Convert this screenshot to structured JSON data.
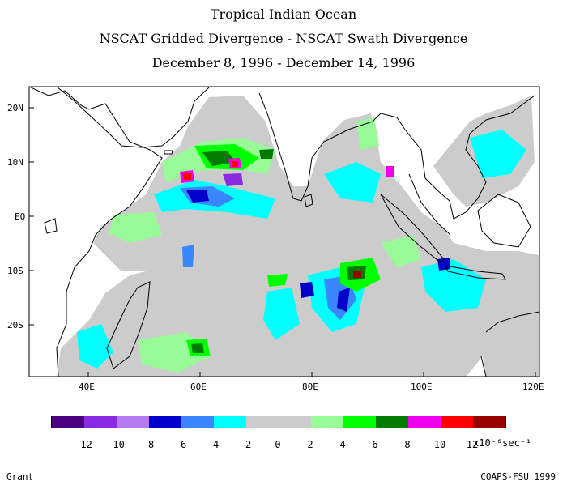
{
  "titles": {
    "line1": "Tropical Indian Ocean",
    "line2": "NSCAT Gridded Divergence - NSCAT Swath Divergence",
    "line3": "December 8, 1996 - December 14, 1996"
  },
  "axes": {
    "lat_labels": [
      "20N",
      "10N",
      "EQ",
      "10S",
      "20S"
    ],
    "lon_labels": [
      "40E",
      "60E",
      "80E",
      "100E",
      "120E"
    ]
  },
  "colorbar": {
    "colors": [
      "#4b0082",
      "#8a2be2",
      "#b77bf0",
      "#0000cd",
      "#3a86ff",
      "#00ffff",
      "#cccccc",
      "#cccccc",
      "#98fb98",
      "#00ff00",
      "#007a00",
      "#ee00ee",
      "#ff0000",
      "#990000"
    ],
    "labels": [
      "-12",
      "-10",
      "-8",
      "-6",
      "-4",
      "-2",
      "0",
      "2",
      "4",
      "6",
      "8",
      "10",
      "12"
    ],
    "units": "x10⁻⁶sec⁻¹"
  },
  "footer": {
    "left": "Grant",
    "right": "COAPS-FSU 1999"
  }
}
